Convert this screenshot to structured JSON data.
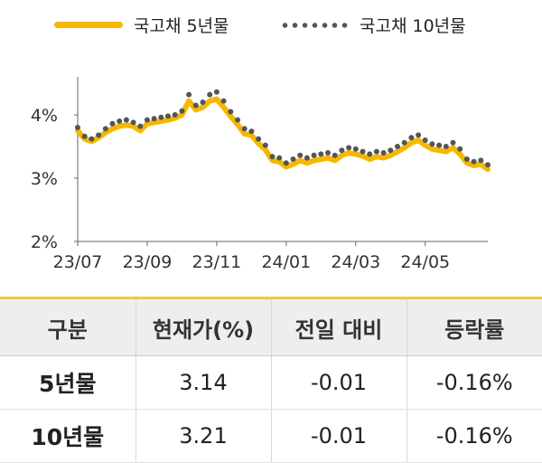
{
  "legend": [
    {
      "label": "국고채 5년물",
      "color": "#f5b800",
      "style": "line"
    },
    {
      "label": "국고채 10년물",
      "color": "#555555",
      "style": "dots"
    }
  ],
  "chart_data": {
    "type": "line",
    "x_tick_labels": [
      "23/07",
      "23/09",
      "23/11",
      "24/01",
      "24/03",
      "24/05"
    ],
    "y_tick_labels": [
      "2%",
      "3%",
      "4%"
    ],
    "ylim": [
      2,
      4.6
    ],
    "grid": false,
    "legend_position": "top",
    "x_points": 60,
    "series": [
      {
        "name": "국고채 5년물",
        "values": [
          3.75,
          3.62,
          3.58,
          3.64,
          3.72,
          3.78,
          3.82,
          3.84,
          3.82,
          3.75,
          3.86,
          3.88,
          3.9,
          3.92,
          3.95,
          4.0,
          4.22,
          4.08,
          4.12,
          4.22,
          4.25,
          4.12,
          3.98,
          3.85,
          3.7,
          3.68,
          3.55,
          3.45,
          3.28,
          3.26,
          3.18,
          3.22,
          3.28,
          3.24,
          3.28,
          3.3,
          3.32,
          3.28,
          3.36,
          3.4,
          3.38,
          3.35,
          3.3,
          3.34,
          3.32,
          3.36,
          3.42,
          3.48,
          3.56,
          3.6,
          3.52,
          3.46,
          3.44,
          3.42,
          3.48,
          3.38,
          3.24,
          3.2,
          3.22,
          3.14
        ]
      },
      {
        "name": "국고채 10년물",
        "values": [
          3.8,
          3.66,
          3.62,
          3.68,
          3.78,
          3.86,
          3.9,
          3.92,
          3.88,
          3.82,
          3.92,
          3.94,
          3.96,
          3.98,
          4.0,
          4.06,
          4.32,
          4.15,
          4.2,
          4.32,
          4.36,
          4.22,
          4.05,
          3.92,
          3.78,
          3.74,
          3.62,
          3.52,
          3.34,
          3.32,
          3.24,
          3.3,
          3.36,
          3.32,
          3.36,
          3.38,
          3.4,
          3.36,
          3.44,
          3.48,
          3.46,
          3.42,
          3.38,
          3.42,
          3.4,
          3.44,
          3.5,
          3.56,
          3.64,
          3.68,
          3.6,
          3.54,
          3.52,
          3.5,
          3.56,
          3.46,
          3.3,
          3.26,
          3.28,
          3.21
        ]
      }
    ]
  },
  "table": {
    "headers": [
      "구분",
      "현재가(%)",
      "전일 대비",
      "등락률"
    ],
    "rows": [
      [
        "5년물",
        "3.14",
        "-0.01",
        "-0.16%"
      ],
      [
        "10년물",
        "3.21",
        "-0.01",
        "-0.16%"
      ]
    ]
  }
}
